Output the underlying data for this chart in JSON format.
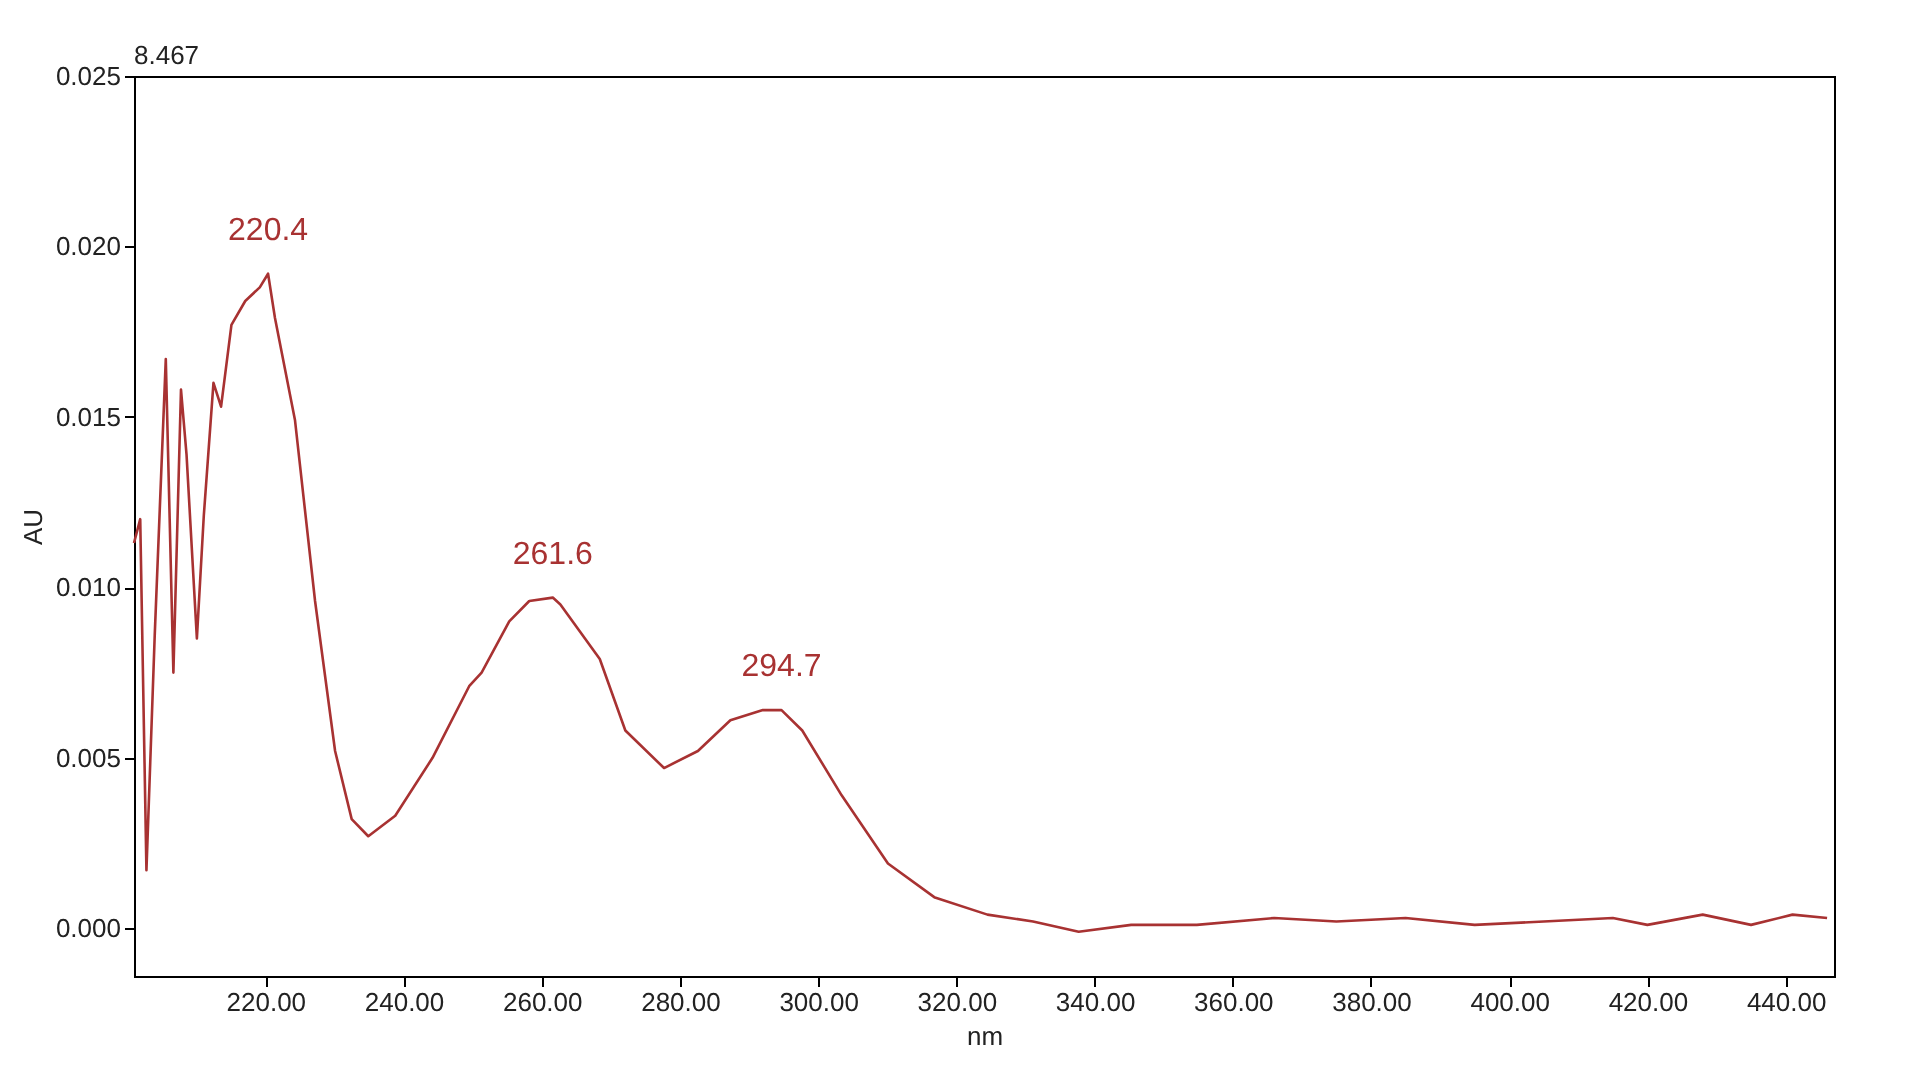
{
  "chart_data": {
    "type": "line",
    "xlabel": "nm",
    "ylabel": "AU",
    "x": [
      201.0,
      201.9,
      202.8,
      204.0,
      205.6,
      206.7,
      207.8,
      208.6,
      210.1,
      211.1,
      212.5,
      213.6,
      215.1,
      217.1,
      219.2,
      220.4,
      221.4,
      224.3,
      227.2,
      230.1,
      232.5,
      234.9,
      238.8,
      244.2,
      249.5,
      251.3,
      255.3,
      258.2,
      261.6,
      262.7,
      268.4,
      272.1,
      277.7,
      282.6,
      287.3,
      292.0,
      294.7,
      297.7,
      303.4,
      310.1,
      316.9,
      324.5,
      331.1,
      337.7,
      345.3,
      354.8,
      366.0,
      375,
      385,
      395,
      405,
      415,
      420,
      428,
      435,
      441,
      446
    ],
    "series": [
      {
        "color": "#a83232",
        "values": [
          0.0113,
          0.012,
          0.0017,
          0.0086,
          0.0167,
          0.0075,
          0.0158,
          0.0139,
          0.0085,
          0.0121,
          0.016,
          0.0153,
          0.0177,
          0.0184,
          0.0188,
          0.0192,
          0.0179,
          0.0149,
          0.0096,
          0.0052,
          0.0032,
          0.0027,
          0.0033,
          0.005,
          0.0071,
          0.0075,
          0.009,
          0.0096,
          0.0097,
          0.0095,
          0.0079,
          0.0058,
          0.0047,
          0.0052,
          0.0061,
          0.0064,
          0.0064,
          0.0058,
          0.0039,
          0.0019,
          0.0009,
          0.0004,
          0.0002,
          -0.0001,
          0.0001,
          0.0001,
          0.0003,
          0.0002,
          0.0003,
          0.0001,
          0.0002,
          0.0003,
          0.0001,
          0.0004,
          0.0001,
          0.0004,
          0.0003
        ]
      }
    ],
    "xlim": [
      201,
      447
    ],
    "ylim": [
      -0.0014,
      0.025
    ],
    "xticks": [
      {
        "value": 220,
        "label": "220.00"
      },
      {
        "value": 240,
        "label": "240.00"
      },
      {
        "value": 260,
        "label": "260.00"
      },
      {
        "value": 280,
        "label": "280.00"
      },
      {
        "value": 300,
        "label": "300.00"
      },
      {
        "value": 320,
        "label": "320.00"
      },
      {
        "value": 340,
        "label": "340.00"
      },
      {
        "value": 360,
        "label": "360.00"
      },
      {
        "value": 380,
        "label": "380.00"
      },
      {
        "value": 400,
        "label": "400.00"
      },
      {
        "value": 420,
        "label": "420.00"
      },
      {
        "value": 440,
        "label": "440.00"
      }
    ],
    "yticks": [
      {
        "value": 0,
        "label": "0.000"
      },
      {
        "value": 0.005,
        "label": "0.005"
      },
      {
        "value": 0.01,
        "label": "0.010"
      },
      {
        "value": 0.015,
        "label": "0.015"
      },
      {
        "value": 0.02,
        "label": "0.020"
      },
      {
        "value": 0.025,
        "label": "0.025"
      }
    ],
    "grid": false,
    "marker": "none",
    "line_style": "solid",
    "annotations": [
      "8.467",
      {
        "text": "220.4",
        "x": 220.4,
        "y": 0.0192
      },
      {
        "text": "261.6",
        "x": 261.6,
        "y": 0.0097
      },
      {
        "text": "294.7",
        "x": 294.7,
        "y": 0.0064
      }
    ]
  }
}
